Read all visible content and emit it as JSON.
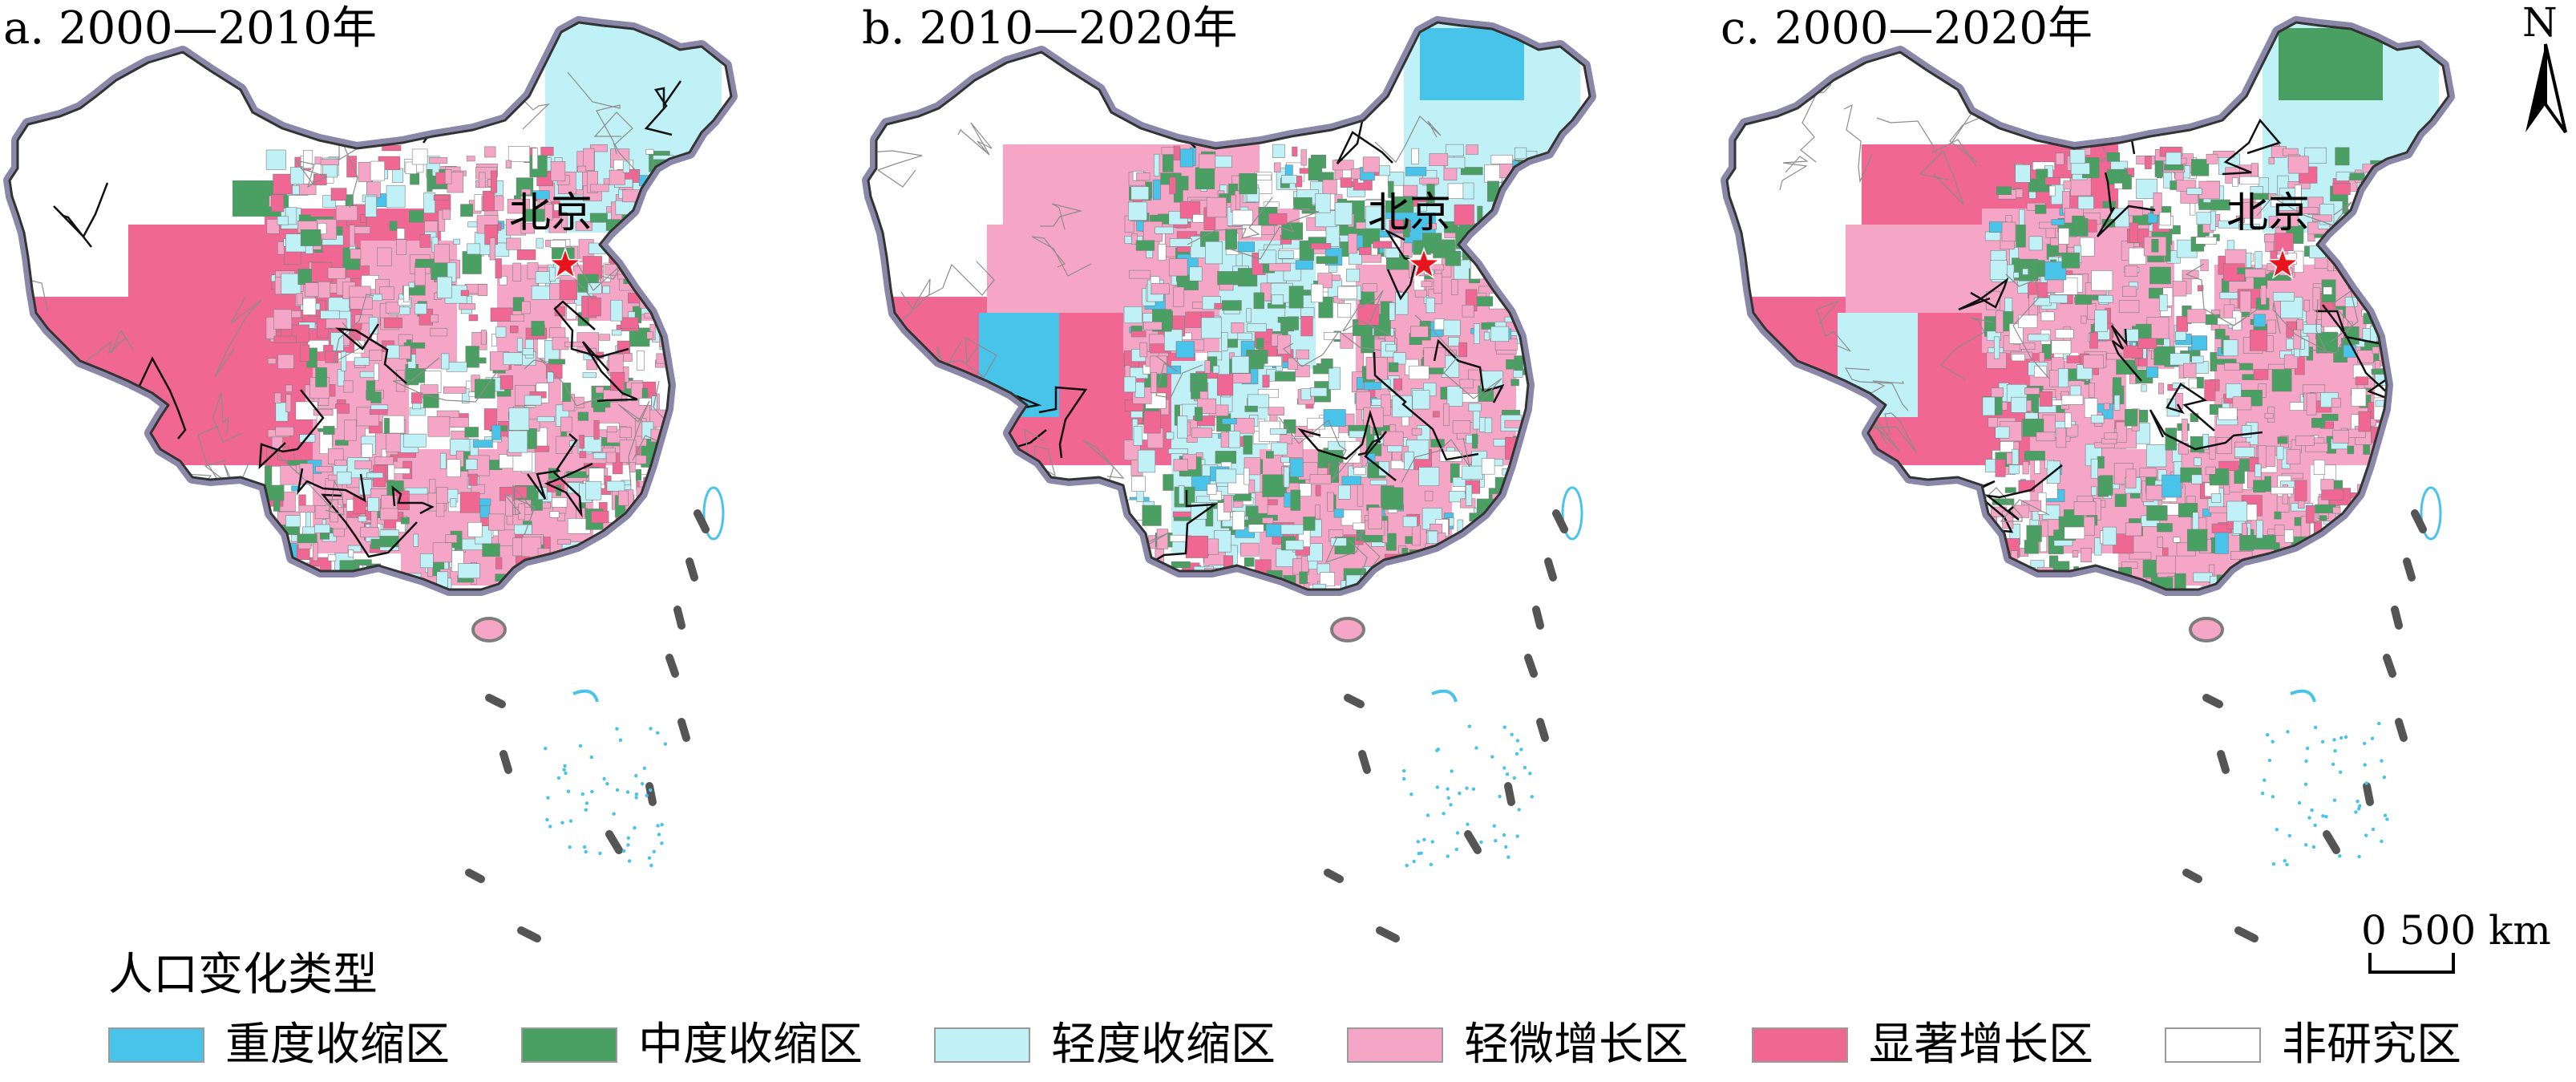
{
  "panels": [
    {
      "title": "a. 2000—2010年"
    },
    {
      "title": "b. 2010—2020年"
    },
    {
      "title": "c. 2000—2020年"
    }
  ],
  "capital_label": "北京",
  "legend": {
    "title": "人口变化类型",
    "items": [
      {
        "label": "重度收缩区",
        "color": "#48c3ea"
      },
      {
        "label": "中度收缩区",
        "color": "#4aa063"
      },
      {
        "label": "轻度收缩区",
        "color": "#bff1f7"
      },
      {
        "label": "轻微增长区",
        "color": "#f5a6c6"
      },
      {
        "label": "显著增长区",
        "color": "#f06794"
      },
      {
        "label": "非研究区",
        "color": "#ffffff"
      }
    ]
  },
  "north_arrow": "N",
  "scale_bar": {
    "label": "0 500 km"
  }
}
